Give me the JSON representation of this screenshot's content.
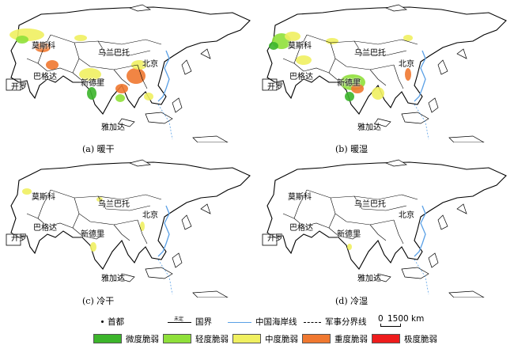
{
  "panels": [
    {
      "caption": "(a) 暖干",
      "pattern": "warm-dry"
    },
    {
      "caption": "(b) 暖湿",
      "pattern": "warm-wet"
    },
    {
      "caption": "(c) 冷干",
      "pattern": "cold-dry"
    },
    {
      "caption": "(d) 冷湿",
      "pattern": "cold-wet"
    }
  ],
  "cities": {
    "moscow": "莫斯科",
    "ulaanbaatar": "乌兰巴托",
    "beijing": "北京",
    "cairo": "开罗",
    "baghdad": "巴格达",
    "new_delhi": "新德里",
    "jakarta": "雅加达"
  },
  "legend": {
    "capital": "首都",
    "border": "国界",
    "border_symbol_text": "未定",
    "coastline": "中国海岸线",
    "military_line": "军事分界线",
    "scale_zero": "0",
    "scale_value": "1500 km",
    "classes": [
      {
        "label": "微度脆弱",
        "color": "#3cb52b"
      },
      {
        "label": "轻度脆弱",
        "color": "#8fe03a"
      },
      {
        "label": "中度脆弱",
        "color": "#f0f060"
      },
      {
        "label": "重度脆弱",
        "color": "#f07830"
      },
      {
        "label": "极度脆弱",
        "color": "#ee1c1c"
      }
    ],
    "coast_color": "#5aa0e6"
  }
}
